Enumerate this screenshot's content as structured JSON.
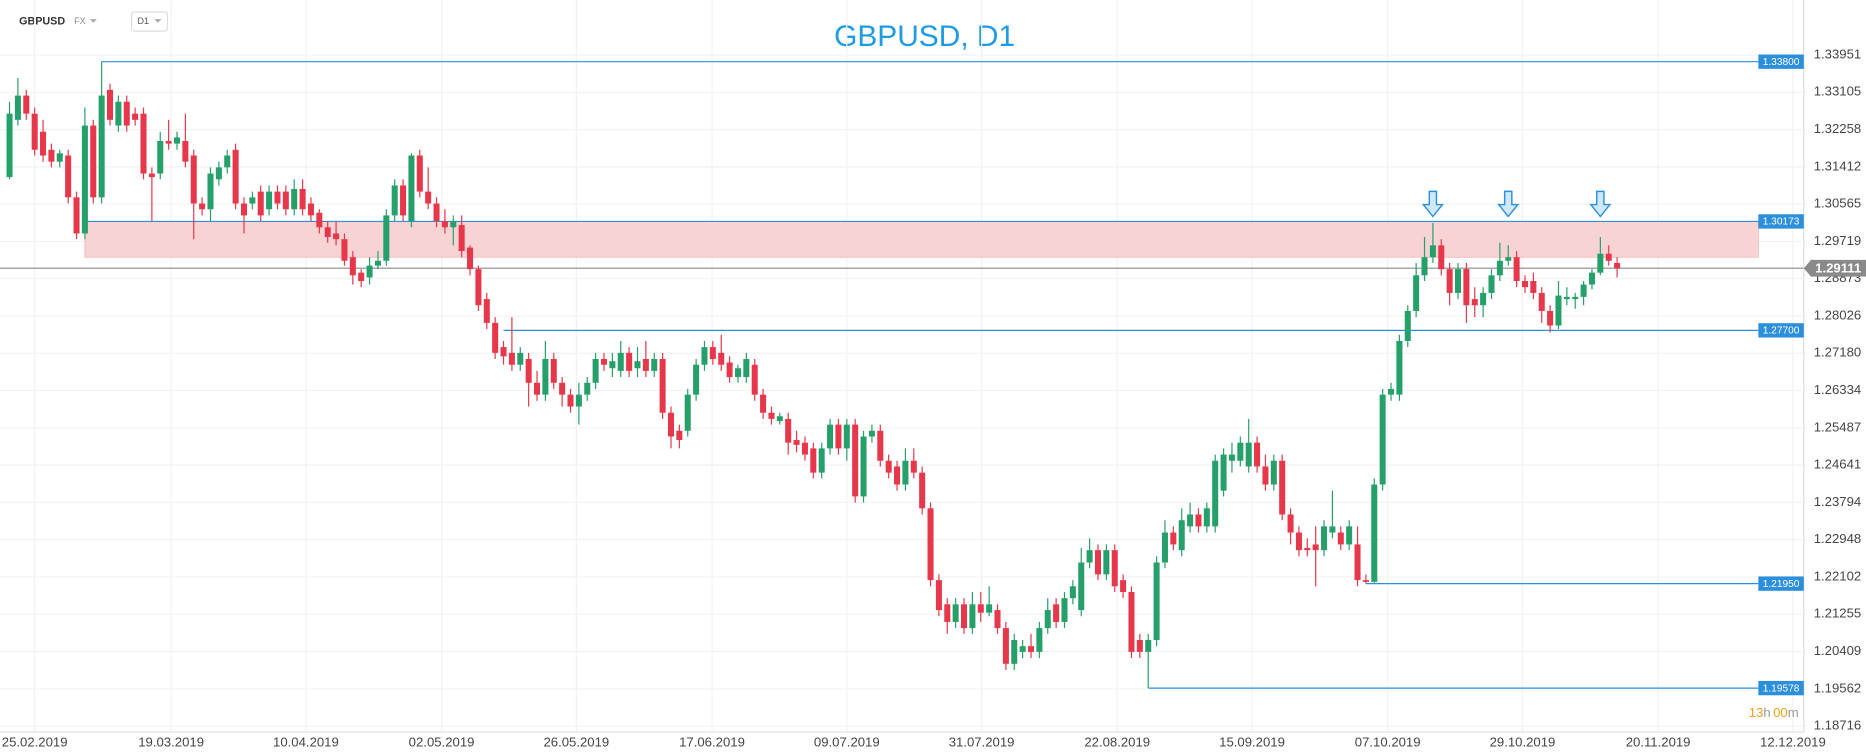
{
  "header": {
    "symbol": "GBPUSD",
    "market": "FX",
    "timeframe": "D1"
  },
  "chart_data": {
    "type": "candlestick",
    "title": "GBPUSD, D1",
    "colors": {
      "up": "#26a06a",
      "down": "#e6374b",
      "level": "#2b8fdb",
      "zone": "#f8d3d3",
      "current": "#8a8a8a",
      "title": "#1d9be3"
    },
    "xlim": [
      -1.14,
      214.3
    ],
    "ylim": [
      1.1858,
      1.352
    ],
    "grid": true,
    "xticks": [
      {
        "value": 3,
        "label": "25.02.2019"
      },
      {
        "value": 19.3,
        "label": "19.03.2019"
      },
      {
        "value": 35.4,
        "label": "10.04.2019"
      },
      {
        "value": 51.6,
        "label": "02.05.2019"
      },
      {
        "value": 67.7,
        "label": "26.05.2019"
      },
      {
        "value": 83.9,
        "label": "17.06.2019"
      },
      {
        "value": 100,
        "label": "09.07.2019"
      },
      {
        "value": 116.1,
        "label": "31.07.2019"
      },
      {
        "value": 132.3,
        "label": "22.08.2019"
      },
      {
        "value": 148.4,
        "label": "15.09.2019"
      },
      {
        "value": 164.6,
        "label": "07.10.2019"
      },
      {
        "value": 180.7,
        "label": "29.10.2019"
      },
      {
        "value": 196.9,
        "label": "20.11.2019"
      },
      {
        "value": 213,
        "label": "12.12.2019"
      }
    ],
    "yticks": [
      1.33951,
      1.33105,
      1.32258,
      1.31412,
      1.30565,
      1.29719,
      1.28873,
      1.28026,
      {
        "value": 1.2718,
        "label": "1.27180"
      },
      1.26334,
      1.25487,
      1.24641,
      1.23794,
      1.22948,
      1.22102,
      1.21255,
      1.20409,
      1.19562,
      1.18716
    ],
    "levels": [
      {
        "price": {
          "value": 1.338,
          "label": "1.33800"
        },
        "start": 11
      },
      {
        "price": 1.30173,
        "start": 9
      },
      {
        "price": {
          "value": 1.277,
          "label": "1.27700"
        },
        "start": 59
      },
      {
        "price": {
          "value": 1.2195,
          "label": "1.21950"
        },
        "start": 162
      },
      {
        "price": 1.19578,
        "start": 136
      }
    ],
    "zone": {
      "high": 1.30173,
      "low": 1.2936,
      "start": 9
    },
    "current_price": 1.29111,
    "arrow_indices": [
      170,
      179,
      190
    ],
    "countdown": {
      "hours": "13",
      "h": "h",
      "minutes": "00",
      "m": "m"
    },
    "ohlc": [
      [
        1.3118,
        1.3289,
        1.3113,
        1.3262
      ],
      [
        1.3248,
        1.3343,
        1.3235,
        1.3303
      ],
      [
        1.3303,
        1.3316,
        1.3248,
        1.3262
      ],
      [
        1.3262,
        1.3276,
        1.3167,
        1.318
      ],
      [
        1.3221,
        1.3248,
        1.3153,
        1.3167
      ],
      [
        1.318,
        1.3194,
        1.314,
        1.3153
      ],
      [
        1.3153,
        1.318,
        1.314,
        1.3172
      ],
      [
        1.3167,
        1.318,
        1.3058,
        1.3072
      ],
      [
        1.3072,
        1.3085,
        1.2977,
        1.299
      ],
      [
        1.299,
        1.3276,
        1.2977,
        1.3235
      ],
      [
        1.3235,
        1.3248,
        1.3058,
        1.3072
      ],
      [
        1.3072,
        1.338,
        1.3058,
        1.3303
      ],
      [
        1.3316,
        1.333,
        1.3235,
        1.3248
      ],
      [
        1.3235,
        1.3303,
        1.3221,
        1.3289
      ],
      [
        1.3289,
        1.3303,
        1.3221,
        1.3235
      ],
      [
        1.3262,
        1.3276,
        1.3235,
        1.3248
      ],
      [
        1.3262,
        1.3276,
        1.3113,
        1.3126
      ],
      [
        1.3126,
        1.314,
        1.3018,
        1.3118
      ],
      [
        1.3126,
        1.3221,
        1.3113,
        1.32
      ],
      [
        1.32,
        1.3248,
        1.318,
        1.3194
      ],
      [
        1.3194,
        1.3221,
        1.318,
        1.3208
      ],
      [
        1.32,
        1.3262,
        1.314,
        1.3153
      ],
      [
        1.3167,
        1.318,
        1.2977,
        1.3058
      ],
      [
        1.3058,
        1.3072,
        1.3031,
        1.3045
      ],
      [
        1.3045,
        1.314,
        1.3018,
        1.3126
      ],
      [
        1.3113,
        1.3153,
        1.3099,
        1.314
      ],
      [
        1.314,
        1.318,
        1.3126,
        1.3167
      ],
      [
        1.318,
        1.3194,
        1.3045,
        1.3058
      ],
      [
        1.3058,
        1.3072,
        1.299,
        1.3031
      ],
      [
        1.3058,
        1.3085,
        1.3045,
        1.3072
      ],
      [
        1.3085,
        1.3099,
        1.3018,
        1.3031
      ],
      [
        1.3045,
        1.3099,
        1.3031,
        1.3085
      ],
      [
        1.3085,
        1.3099,
        1.3045,
        1.3058
      ],
      [
        1.3085,
        1.3099,
        1.3031,
        1.3045
      ],
      [
        1.3045,
        1.3113,
        1.3031,
        1.3091
      ],
      [
        1.3091,
        1.3113,
        1.3031,
        1.3045
      ],
      [
        1.3058,
        1.3072,
        1.3018,
        1.3031
      ],
      [
        1.3037,
        1.3045,
        1.299,
        1.3004
      ],
      [
        1.3004,
        1.3018,
        1.2969,
        1.2982
      ],
      [
        1.299,
        1.3018,
        1.2963,
        1.2977
      ],
      [
        1.2977,
        1.299,
        1.2917,
        1.2928
      ],
      [
        1.2936,
        1.295,
        1.2874,
        1.2895
      ],
      [
        1.2901,
        1.2909,
        1.2868,
        1.2882
      ],
      [
        1.289,
        1.2936,
        1.2874,
        1.2917
      ],
      [
        1.2917,
        1.295,
        1.2909,
        1.2928
      ],
      [
        1.2928,
        1.3045,
        1.2917,
        1.3031
      ],
      [
        1.3031,
        1.3113,
        1.3018,
        1.3099
      ],
      [
        1.3099,
        1.3113,
        1.3018,
        1.3031
      ],
      [
        1.3018,
        1.3172,
        1.3004,
        1.3167
      ],
      [
        1.3167,
        1.318,
        1.3072,
        1.3085
      ],
      [
        1.3085,
        1.314,
        1.3045,
        1.3058
      ],
      [
        1.3058,
        1.3072,
        1.3004,
        1.3018
      ],
      [
        1.3018,
        1.3045,
        1.299,
        1.3004
      ],
      [
        1.3004,
        1.3031,
        1.2963,
        1.3018
      ],
      [
        1.3009,
        1.3031,
        1.2936,
        1.295
      ],
      [
        1.2958,
        1.2963,
        1.2895,
        1.2909
      ],
      [
        1.2909,
        1.2917,
        1.2814,
        1.2827
      ],
      [
        1.2841,
        1.2855,
        1.2773,
        1.2787
      ],
      [
        1.2787,
        1.28,
        1.2705,
        1.2719
      ],
      [
        1.2732,
        1.2746,
        1.2692,
        1.2711
      ],
      [
        1.2719,
        1.28,
        1.2678,
        1.2692
      ],
      [
        1.2692,
        1.2732,
        1.2678,
        1.2719
      ],
      [
        1.2705,
        1.2719,
        1.2597,
        1.2651
      ],
      [
        1.2651,
        1.2678,
        1.261,
        1.2624
      ],
      [
        1.2624,
        1.2746,
        1.261,
        1.2705
      ],
      [
        1.2705,
        1.2719,
        1.2637,
        1.2651
      ],
      [
        1.2651,
        1.2664,
        1.2597,
        1.2624
      ],
      [
        1.2624,
        1.2637,
        1.2583,
        1.2597
      ],
      [
        1.2597,
        1.2651,
        1.2556,
        1.2624
      ],
      [
        1.2624,
        1.2664,
        1.261,
        1.2651
      ],
      [
        1.2651,
        1.2719,
        1.2637,
        1.2705
      ],
      [
        1.2705,
        1.2719,
        1.2678,
        1.2692
      ],
      [
        1.2684,
        1.2719,
        1.2664,
        1.27
      ],
      [
        1.2678,
        1.2746,
        1.2664,
        1.2719
      ],
      [
        1.2719,
        1.2732,
        1.2664,
        1.2678
      ],
      [
        1.2684,
        1.2732,
        1.2664,
        1.27
      ],
      [
        1.2705,
        1.2746,
        1.2664,
        1.2678
      ],
      [
        1.2678,
        1.2719,
        1.2664,
        1.2705
      ],
      [
        1.2705,
        1.2719,
        1.2569,
        1.2583
      ],
      [
        1.2583,
        1.2597,
        1.2502,
        1.2529
      ],
      [
        1.2542,
        1.2556,
        1.2502,
        1.2521
      ],
      [
        1.2542,
        1.2637,
        1.2529,
        1.2624
      ],
      [
        1.2624,
        1.2705,
        1.261,
        1.2692
      ],
      [
        1.2692,
        1.2746,
        1.2678,
        1.2732
      ],
      [
        1.2732,
        1.2746,
        1.2692,
        1.2705
      ],
      [
        1.2719,
        1.276,
        1.2678,
        1.2692
      ],
      [
        1.2697,
        1.2711,
        1.2651,
        1.2664
      ],
      [
        1.2664,
        1.2692,
        1.2651,
        1.2684
      ],
      [
        1.2664,
        1.2719,
        1.2651,
        1.2705
      ],
      [
        1.2692,
        1.2705,
        1.261,
        1.2624
      ],
      [
        1.2624,
        1.2637,
        1.2569,
        1.2583
      ],
      [
        1.2583,
        1.2597,
        1.2556,
        1.2569
      ],
      [
        1.2564,
        1.2583,
        1.2556,
        1.2575
      ],
      [
        1.2569,
        1.2583,
        1.2488,
        1.2515
      ],
      [
        1.2521,
        1.2542,
        1.2493,
        1.251
      ],
      [
        1.2515,
        1.2529,
        1.2474,
        1.2488
      ],
      [
        1.2502,
        1.2515,
        1.2434,
        1.2447
      ],
      [
        1.2447,
        1.2515,
        1.2434,
        1.2502
      ],
      [
        1.2502,
        1.2569,
        1.2488,
        1.2556
      ],
      [
        1.2556,
        1.2569,
        1.2488,
        1.2502
      ],
      [
        1.2502,
        1.2569,
        1.2474,
        1.2556
      ],
      [
        1.2556,
        1.2569,
        1.2379,
        1.2393
      ],
      [
        1.2393,
        1.2542,
        1.2379,
        1.2529
      ],
      [
        1.2529,
        1.2556,
        1.2515,
        1.2542
      ],
      [
        1.2542,
        1.2556,
        1.2461,
        1.2474
      ],
      [
        1.2474,
        1.2488,
        1.2434,
        1.2447
      ],
      [
        1.2461,
        1.2474,
        1.2406,
        1.242
      ],
      [
        1.242,
        1.2502,
        1.2406,
        1.2474
      ],
      [
        1.2474,
        1.2502,
        1.2434,
        1.2447
      ],
      [
        1.2447,
        1.2461,
        1.2352,
        1.2366
      ],
      [
        1.2366,
        1.2379,
        1.2189,
        1.2203
      ],
      [
        1.2203,
        1.2216,
        1.2121,
        1.2135
      ],
      [
        1.2148,
        1.2162,
        1.2081,
        1.2108
      ],
      [
        1.2108,
        1.2162,
        1.2094,
        1.2148
      ],
      [
        1.2148,
        1.2162,
        1.2081,
        1.2094
      ],
      [
        1.2094,
        1.2176,
        1.2081,
        1.2148
      ],
      [
        1.2148,
        1.2176,
        1.2108,
        1.2129
      ],
      [
        1.2129,
        1.2189,
        1.2121,
        1.2148
      ],
      [
        1.2135,
        1.2148,
        1.2081,
        1.2094
      ],
      [
        1.2094,
        1.2108,
        1.1999,
        1.2013
      ],
      [
        1.2013,
        1.2081,
        1.1999,
        1.2067
      ],
      [
        1.204,
        1.2067,
        1.2026,
        1.2053
      ],
      [
        1.2053,
        1.2081,
        1.2026,
        1.204
      ],
      [
        1.204,
        1.2108,
        1.2026,
        1.2094
      ],
      [
        1.2094,
        1.2162,
        1.2081,
        1.2135
      ],
      [
        1.2148,
        1.2162,
        1.2094,
        1.2108
      ],
      [
        1.2108,
        1.2176,
        1.2094,
        1.2162
      ],
      [
        1.2162,
        1.2203,
        1.2148,
        1.2189
      ],
      [
        1.2135,
        1.2276,
        1.2121,
        1.2243
      ],
      [
        1.2243,
        1.2298,
        1.223,
        1.2271
      ],
      [
        1.2271,
        1.2284,
        1.2203,
        1.2216
      ],
      [
        1.2216,
        1.2284,
        1.2203,
        1.2271
      ],
      [
        1.2271,
        1.2284,
        1.2176,
        1.2189
      ],
      [
        1.2203,
        1.2216,
        1.2162,
        1.2176
      ],
      [
        1.2176,
        1.2189,
        1.2026,
        1.204
      ],
      [
        1.2067,
        1.2081,
        1.2026,
        1.204
      ],
      [
        1.204,
        1.2081,
        1.1958,
        1.2067
      ],
      [
        1.2067,
        1.2257,
        1.2053,
        1.2243
      ],
      [
        1.2243,
        1.2339,
        1.223,
        1.2311
      ],
      [
        1.2311,
        1.2325,
        1.2271,
        1.2284
      ],
      [
        1.2271,
        1.2366,
        1.2257,
        1.2339
      ],
      [
        1.2325,
        1.2379,
        1.2311,
        1.2352
      ],
      [
        1.2352,
        1.2366,
        1.2311,
        1.2325
      ],
      [
        1.2325,
        1.2379,
        1.2311,
        1.2366
      ],
      [
        1.2325,
        1.2488,
        1.2311,
        1.2474
      ],
      [
        1.2406,
        1.2502,
        1.2393,
        1.2488
      ],
      [
        1.2474,
        1.2515,
        1.2447,
        1.2488
      ],
      [
        1.2474,
        1.2529,
        1.2461,
        1.2515
      ],
      [
        1.2461,
        1.2569,
        1.2447,
        1.2515
      ],
      [
        1.2515,
        1.2529,
        1.2447,
        1.2461
      ],
      [
        1.2461,
        1.2488,
        1.2406,
        1.242
      ],
      [
        1.242,
        1.2488,
        1.2406,
        1.2474
      ],
      [
        1.2474,
        1.2488,
        1.2339,
        1.2352
      ],
      [
        1.2352,
        1.2366,
        1.2284,
        1.2311
      ],
      [
        1.2311,
        1.2325,
        1.2257,
        1.2271
      ],
      [
        1.2276,
        1.2298,
        1.2257,
        1.2271
      ],
      [
        1.2284,
        1.2325,
        1.2189,
        1.2271
      ],
      [
        1.2271,
        1.2339,
        1.2257,
        1.2325
      ],
      [
        1.2311,
        1.2406,
        1.2298,
        1.2325
      ],
      [
        1.2311,
        1.2325,
        1.2271,
        1.2284
      ],
      [
        1.2284,
        1.2339,
        1.2271,
        1.2325
      ],
      [
        1.2284,
        1.2325,
        1.2189,
        1.2203
      ],
      [
        1.2203,
        1.2216,
        1.2195,
        1.2199
      ],
      [
        1.2199,
        1.2434,
        1.2197,
        1.242
      ],
      [
        1.242,
        1.2637,
        1.2406,
        1.2624
      ],
      [
        1.2624,
        1.2651,
        1.261,
        1.2637
      ],
      [
        1.2624,
        1.276,
        1.261,
        1.2746
      ],
      [
        1.2746,
        1.2827,
        1.2732,
        1.2814
      ],
      [
        1.2814,
        1.2923,
        1.28,
        1.2895
      ],
      [
        1.2895,
        1.2982,
        1.2882,
        1.2936
      ],
      [
        1.2936,
        1.3014,
        1.2923,
        1.2963
      ],
      [
        1.2963,
        1.2977,
        1.2895,
        1.2909
      ],
      [
        1.2909,
        1.2923,
        1.2827,
        1.2855
      ],
      [
        1.2855,
        1.2923,
        1.2841,
        1.2909
      ],
      [
        1.2909,
        1.2923,
        1.2787,
        1.2827
      ],
      [
        1.2841,
        1.2868,
        1.28,
        1.2827
      ],
      [
        1.2827,
        1.2868,
        1.28,
        1.2855
      ],
      [
        1.2855,
        1.2909,
        1.2841,
        1.2895
      ],
      [
        1.2895,
        1.2969,
        1.2882,
        1.2928
      ],
      [
        1.2928,
        1.2963,
        1.2917,
        1.2936
      ],
      [
        1.2936,
        1.295,
        1.2868,
        1.2882
      ],
      [
        1.2882,
        1.2895,
        1.2855,
        1.2868
      ],
      [
        1.2882,
        1.2901,
        1.2841,
        1.2855
      ],
      [
        1.2855,
        1.2868,
        1.2787,
        1.2814
      ],
      [
        1.2814,
        1.2827,
        1.2765,
        1.2781
      ],
      [
        1.2781,
        1.2882,
        1.2773,
        1.2849
      ],
      [
        1.2841,
        1.2868,
        1.2827,
        1.2846
      ],
      [
        1.2841,
        1.2855,
        1.2819,
        1.2846
      ],
      [
        1.2846,
        1.2882,
        1.2827,
        1.2874
      ],
      [
        1.2874,
        1.2909,
        1.2863,
        1.2901
      ],
      [
        1.2901,
        1.2982,
        1.2895,
        1.2944
      ],
      [
        1.2944,
        1.2963,
        1.2917,
        1.2928
      ],
      [
        1.2923,
        1.2936,
        1.289,
        1.2911
      ]
    ]
  }
}
